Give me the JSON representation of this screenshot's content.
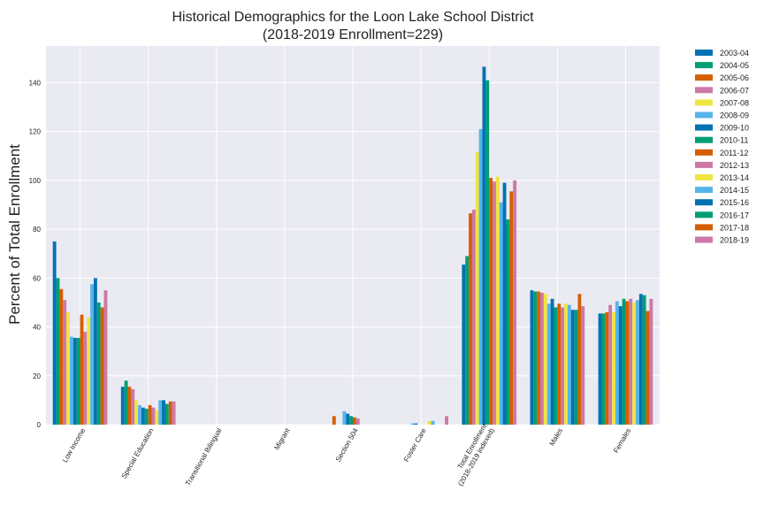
{
  "chart_data": {
    "type": "bar",
    "title_line1": "Historical Demographics for the Loon Lake School District",
    "title_line2": "(2018-2019 Enrollment=229)",
    "xlabel": "",
    "ylabel": "Percent of Total Enrollment",
    "ylim": [
      0,
      155
    ],
    "yticks": [
      0,
      20,
      40,
      60,
      80,
      100,
      120,
      140
    ],
    "grid": true,
    "legend_position": "outside-top-right",
    "categories": [
      "Low Income",
      "Special Education",
      "Transitional Bilingual",
      "Migrant",
      "Section 504",
      "Foster Care",
      "Total Enrollment\n(2018-2019 indexed)",
      "Males",
      "Females"
    ],
    "series": [
      {
        "name": "2003-04",
        "color": "#0072b2",
        "values": [
          75,
          15.5,
          0,
          0,
          0,
          0,
          65.5,
          55,
          45.5
        ]
      },
      {
        "name": "2004-05",
        "color": "#009e73",
        "values": [
          60,
          18,
          0,
          0,
          0,
          0,
          69,
          54.5,
          45.5
        ]
      },
      {
        "name": "2005-06",
        "color": "#d55e00",
        "values": [
          55.5,
          15.5,
          0,
          0,
          3.5,
          0,
          86.5,
          54.5,
          46
        ]
      },
      {
        "name": "2006-07",
        "color": "#cc79a7",
        "values": [
          51,
          14.5,
          0,
          0,
          0,
          0,
          88,
          54,
          49
        ]
      },
      {
        "name": "2007-08",
        "color": "#f0e442",
        "values": [
          46,
          10,
          0,
          0,
          0,
          0,
          111.5,
          53.5,
          46
        ]
      },
      {
        "name": "2008-09",
        "color": "#56b4e9",
        "values": [
          36,
          8,
          0,
          0,
          5.5,
          0.5,
          121,
          49.5,
          50.5
        ]
      },
      {
        "name": "2009-10",
        "color": "#0072b2",
        "values": [
          35.5,
          7,
          0,
          0,
          4.5,
          0.5,
          146.5,
          51.5,
          48.5
        ]
      },
      {
        "name": "2010-11",
        "color": "#009e73",
        "values": [
          35.5,
          6.5,
          0,
          0,
          3.5,
          0,
          141,
          48,
          51.5
        ]
      },
      {
        "name": "2011-12",
        "color": "#d55e00",
        "values": [
          45,
          8,
          0,
          0,
          3,
          0,
          101,
          49.5,
          50.5
        ]
      },
      {
        "name": "2012-13",
        "color": "#cc79a7",
        "values": [
          38,
          7,
          0,
          0,
          2.5,
          0,
          99.5,
          48,
          51.5
        ]
      },
      {
        "name": "2013-14",
        "color": "#f0e442",
        "values": [
          44,
          6,
          0,
          0,
          0,
          1.5,
          101.5,
          49.5,
          50
        ]
      },
      {
        "name": "2014-15",
        "color": "#56b4e9",
        "values": [
          57.5,
          10,
          0,
          0,
          0,
          1.5,
          91,
          49,
          51
        ]
      },
      {
        "name": "2015-16",
        "color": "#0072b2",
        "values": [
          60,
          10,
          0,
          0,
          0,
          0,
          99,
          47,
          53.5
        ]
      },
      {
        "name": "2016-17",
        "color": "#009e73",
        "values": [
          50,
          8.5,
          0,
          0,
          0,
          0,
          84,
          47,
          53
        ]
      },
      {
        "name": "2017-18",
        "color": "#d55e00",
        "values": [
          48,
          9.5,
          0,
          0,
          0,
          0,
          95.5,
          53.5,
          46.5
        ]
      },
      {
        "name": "2018-19",
        "color": "#cc79a7",
        "values": [
          55,
          9.5,
          0,
          0,
          0,
          3.5,
          100,
          48.5,
          51.5
        ]
      }
    ],
    "style": {
      "plot_background": "#eaeaf2",
      "grid_color": "#ffffff"
    }
  }
}
